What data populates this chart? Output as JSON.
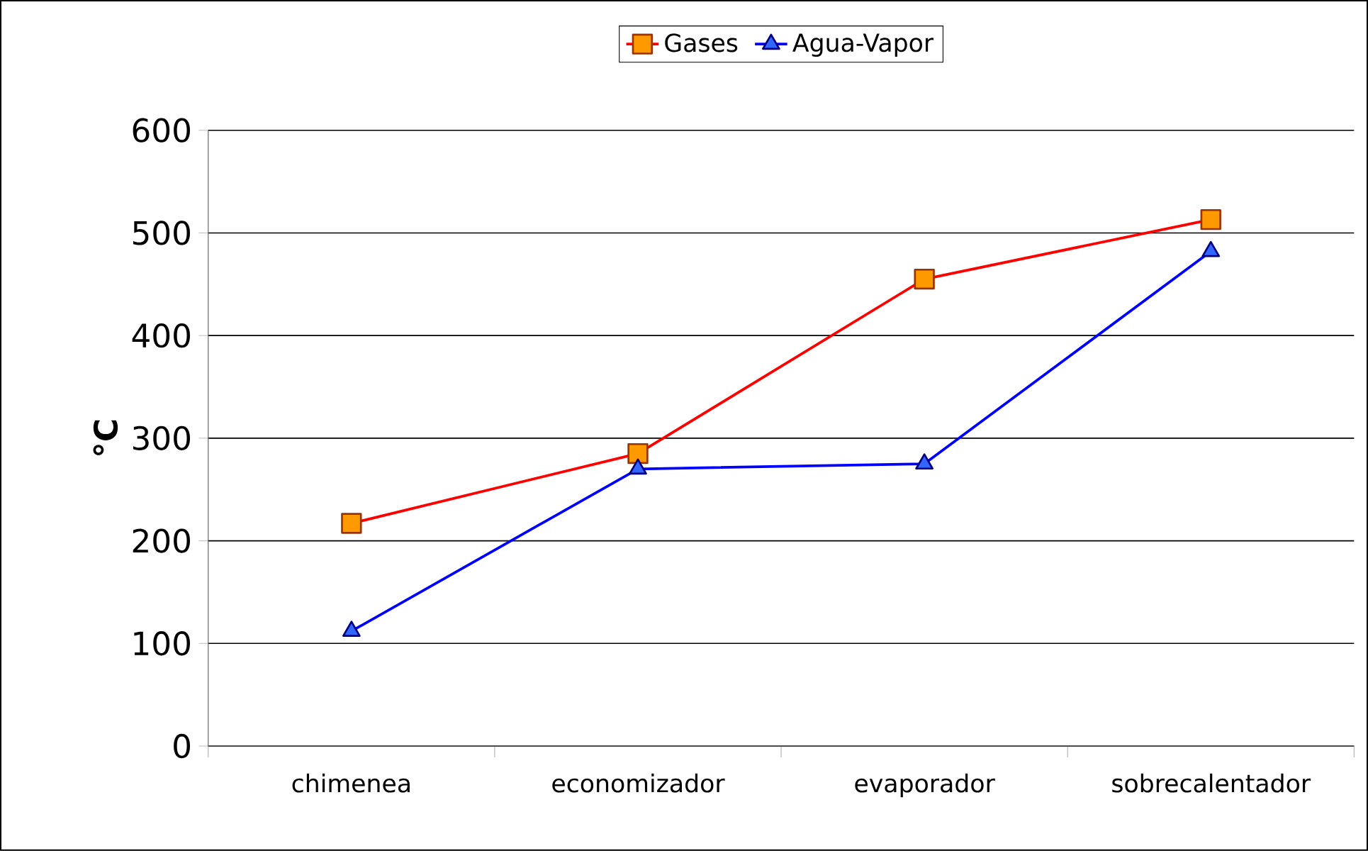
{
  "chart_data": {
    "type": "line",
    "ylabel": "°C",
    "categories": [
      "chimenea",
      "economizador",
      "evaporador",
      "sobrecalentador"
    ],
    "series": [
      {
        "name": "Gases",
        "color": "#ff0000",
        "marker": "square",
        "values": [
          217,
          285,
          455,
          513
        ]
      },
      {
        "name": "Agua-Vapor",
        "color": "#0000ff",
        "marker": "triangle",
        "values": [
          112,
          270,
          275,
          482
        ]
      }
    ],
    "ylim": [
      0,
      600
    ],
    "yticks": [
      0,
      100,
      200,
      300,
      400,
      500,
      600
    ],
    "grid": "y",
    "legend": "top",
    "line_style": "solid"
  }
}
